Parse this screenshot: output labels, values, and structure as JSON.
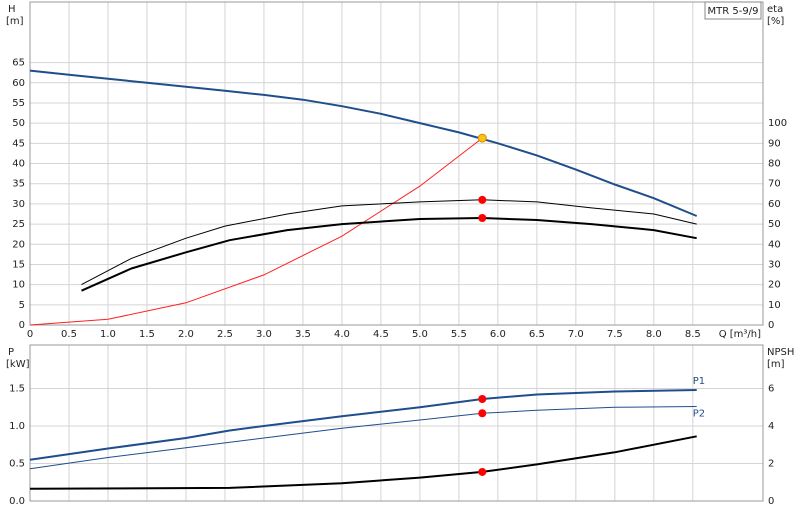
{
  "chart_data": [
    {
      "type": "line",
      "title": "MTR 5-9/9",
      "ylabel": "H",
      "yunit": "[m]",
      "y2label": "eta",
      "y2unit": "[%]",
      "xlabel": "Q [m³/h]",
      "xlim": [
        0,
        9.4
      ],
      "ylim": [
        0,
        80
      ],
      "y2lim": [
        0,
        160
      ],
      "grid": true,
      "xticks": [
        0,
        {
          "value": 0.5,
          "label": "0.5"
        },
        {
          "value": 1,
          "label": "1.0"
        },
        1.5,
        {
          "value": 2,
          "label": "2.0"
        },
        2.5,
        {
          "value": 3,
          "label": "3.0"
        },
        3.5,
        {
          "value": 4,
          "label": "4.0"
        },
        4.5,
        {
          "value": 5,
          "label": "5.0"
        },
        5.5,
        {
          "value": 6,
          "label": "6.0"
        },
        6.5,
        {
          "value": 7,
          "label": "7.0"
        },
        7.5,
        {
          "value": 8,
          "label": "8.0"
        },
        8.5
      ],
      "yticks": [
        0,
        5,
        10,
        15,
        20,
        25,
        30,
        35,
        40,
        45,
        50,
        55,
        60,
        65
      ],
      "y2ticks": [
        0,
        10,
        20,
        30,
        40,
        50,
        60,
        70,
        80,
        90,
        100
      ],
      "series": [
        {
          "color": "#1f4e8c",
          "width": 2,
          "x": [
            0,
            0.5,
            1,
            1.5,
            2,
            2.5,
            3,
            3.5,
            4,
            4.5,
            5,
            5.5,
            6,
            6.5,
            7,
            7.5,
            8,
            8.55
          ],
          "values": [
            63,
            62,
            61,
            60,
            59,
            58,
            57,
            55.8,
            54.2,
            52.3,
            50,
            47.7,
            45,
            42,
            38.5,
            34.8,
            31.4,
            27
          ]
        },
        {
          "color": "#ff2020",
          "width": 1,
          "x": [
            0,
            1,
            2,
            3,
            4,
            5,
            5.8
          ],
          "values": [
            0,
            1.4,
            5.5,
            12.4,
            22,
            34.4,
            46.3
          ]
        },
        {
          "color": "#000000",
          "width": 1,
          "axis": "y2",
          "x": [
            0.66,
            1.3,
            2,
            2.5,
            3.3,
            4,
            5,
            5.8,
            6.5,
            7.2,
            8,
            8.55
          ],
          "values": [
            20,
            33,
            43,
            49,
            55,
            59,
            61,
            62,
            61,
            58,
            55,
            50
          ]
        },
        {
          "color": "#000000",
          "width": 2,
          "axis": "y2",
          "x": [
            0.66,
            1.3,
            2,
            2.56,
            3.3,
            4,
            5,
            5.8,
            6.5,
            7.2,
            8,
            8.55
          ],
          "values": [
            17,
            28,
            36,
            42,
            47,
            50,
            52.5,
            53,
            52,
            50,
            47,
            43
          ]
        }
      ],
      "markers": [
        {
          "x": 5.8,
          "y": 46.3,
          "color": "#f5c518"
        },
        {
          "x": 5.8,
          "y": 62,
          "color": "#ff0000",
          "axis": "y2"
        },
        {
          "x": 5.8,
          "y": 53,
          "color": "#ff0000",
          "axis": "y2"
        }
      ]
    },
    {
      "type": "line",
      "sharex": true,
      "ylabel": "P",
      "yunit": "[kW]",
      "y2label": "NPSH",
      "y2unit": "[m]",
      "xlim": [
        0,
        9.4
      ],
      "ylim": [
        0,
        2.08
      ],
      "y2lim": [
        0,
        8.32
      ],
      "grid": true,
      "yticks": [
        {
          "value": 0,
          "label": "0.0"
        },
        0.5,
        {
          "value": 1,
          "label": "1.0"
        },
        1.5
      ],
      "y2ticks": [
        0,
        2,
        4,
        6
      ],
      "series": [
        {
          "name": "P1",
          "color": "#1f4e8c",
          "width": 2,
          "x": [
            0,
            1,
            2,
            2.56,
            3,
            4,
            5,
            5.8,
            6.5,
            7.5,
            8.55
          ],
          "values": [
            0.55,
            0.7,
            0.84,
            0.94,
            1.0,
            1.13,
            1.25,
            1.36,
            1.42,
            1.46,
            1.48
          ]
        },
        {
          "name": "P2",
          "color": "#1f4e8c",
          "width": 1,
          "x": [
            0,
            1,
            2,
            3,
            4,
            5,
            5.8,
            6.5,
            7.5,
            8.55
          ],
          "values": [
            0.43,
            0.58,
            0.71,
            0.84,
            0.97,
            1.08,
            1.17,
            1.21,
            1.25,
            1.26
          ]
        },
        {
          "color": "#000000",
          "width": 2,
          "axis": "y2",
          "x": [
            0,
            2.56,
            4,
            5,
            5.8,
            6.5,
            7.5,
            8.55
          ],
          "values": [
            0.65,
            0.7,
            0.95,
            1.25,
            1.55,
            1.95,
            2.6,
            3.45
          ]
        }
      ],
      "markers": [
        {
          "x": 5.8,
          "y": 1.36,
          "color": "#ff0000"
        },
        {
          "x": 5.8,
          "y": 1.17,
          "color": "#ff0000"
        },
        {
          "x": 5.8,
          "y": 1.55,
          "color": "#ff0000",
          "axis": "y2"
        }
      ]
    }
  ]
}
